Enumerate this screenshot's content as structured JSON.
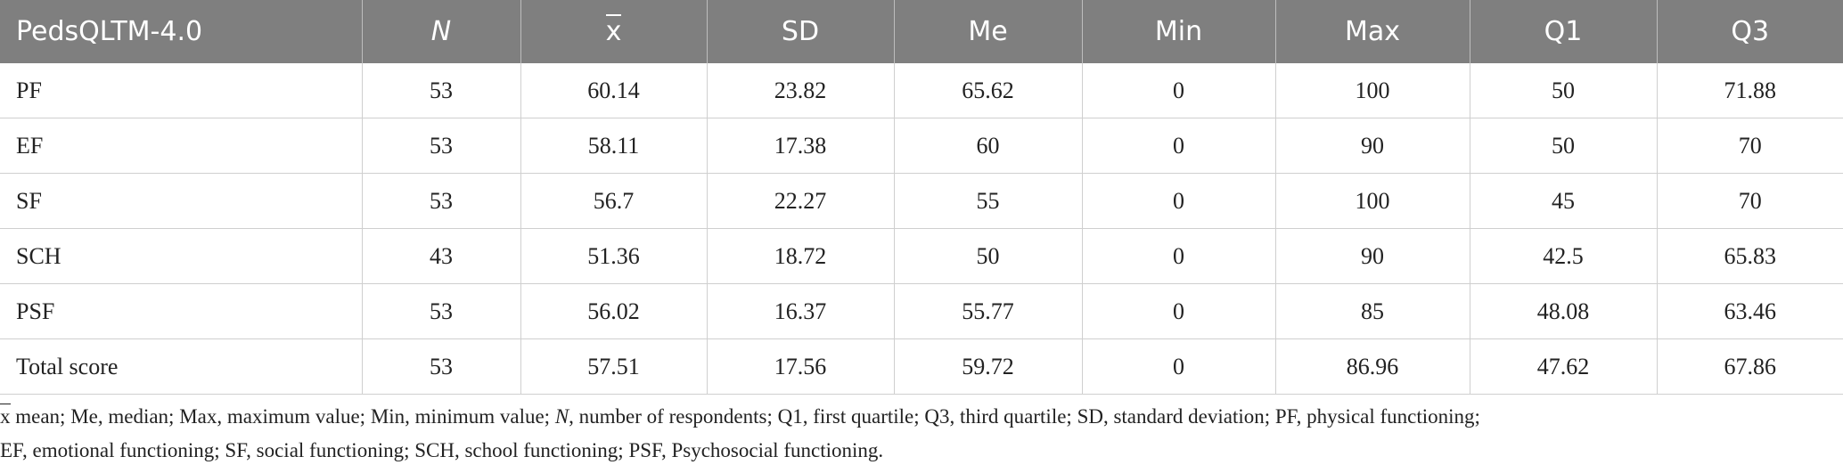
{
  "table": {
    "headers": [
      "PedsQLTM-4.0",
      "N",
      "x",
      "SD",
      "Me",
      "Min",
      "Max",
      "Q1",
      "Q3"
    ],
    "rows": [
      [
        "PF",
        "53",
        "60.14",
        "23.82",
        "65.62",
        "0",
        "100",
        "50",
        "71.88"
      ],
      [
        "EF",
        "53",
        "58.11",
        "17.38",
        "60",
        "0",
        "90",
        "50",
        "70"
      ],
      [
        "SF",
        "53",
        "56.7",
        "22.27",
        "55",
        "0",
        "100",
        "45",
        "70"
      ],
      [
        "SCH",
        "43",
        "51.36",
        "18.72",
        "50",
        "0",
        "90",
        "42.5",
        "65.83"
      ],
      [
        "PSF",
        "53",
        "56.02",
        "16.37",
        "55.77",
        "0",
        "85",
        "48.08",
        "63.46"
      ],
      [
        "Total score",
        "53",
        "57.51",
        "17.56",
        "59.72",
        "0",
        "86.96",
        "47.62",
        "67.86"
      ]
    ]
  },
  "footnote": {
    "symbol": "x",
    "part1": " mean; Me, median; Max, maximum value; Min, minimum value; ",
    "n_symbol": "N",
    "part2": ", number of respondents; Q1, first quartile; Q3, third quartile; SD, standard deviation; PF, physical functioning;",
    "line2": "EF, emotional functioning; SF, social functioning; SCH, school functioning; PSF, Psychosocial functioning."
  }
}
